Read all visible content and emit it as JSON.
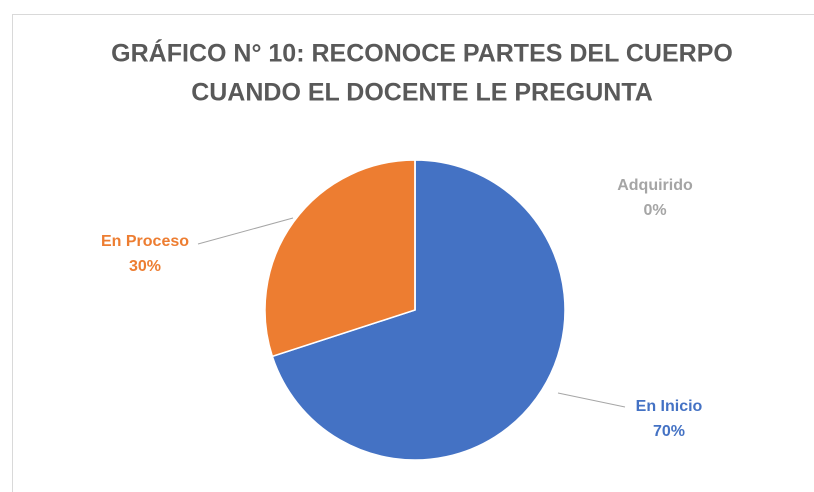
{
  "chart_data": {
    "type": "pie",
    "title": [
      "GRÁFICO N° 10: RECONOCE PARTES DEL CUERPO",
      "CUANDO EL DOCENTE LE PREGUNTA"
    ],
    "categories": [
      "En Inicio",
      "En Proceso",
      "Adquirido"
    ],
    "values": [
      70,
      30,
      0
    ],
    "value_labels": [
      "70%",
      "30%",
      "0%"
    ],
    "colors": [
      "#4472c4",
      "#ed7d31",
      "#a5a5a5"
    ]
  }
}
